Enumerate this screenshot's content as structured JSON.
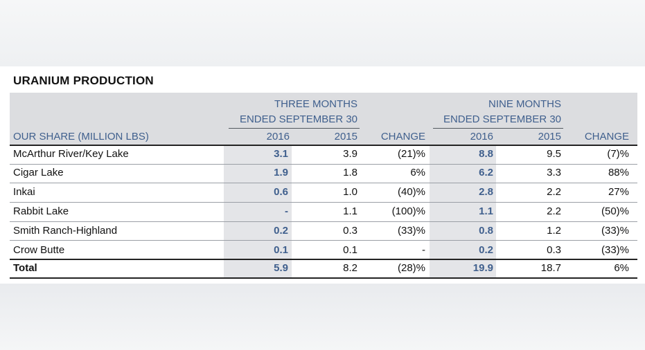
{
  "title": "URANIUM PRODUCTION",
  "header": {
    "group_three_line1": "THREE MONTHS",
    "group_three_line2": "ENDED SEPTEMBER 30",
    "group_nine_line1": "NINE MONTHS",
    "group_nine_line2": "ENDED SEPTEMBER 30",
    "row_label": "OUR SHARE (MILLION LBS)",
    "col_2016_a": "2016",
    "col_2015_a": "2015",
    "col_change_a": "CHANGE",
    "col_2016_b": "2016",
    "col_2015_b": "2015",
    "col_change_b": "CHANGE"
  },
  "rows": [
    {
      "name": "McArthur River/Key Lake",
      "q16": "3.1",
      "q15": "3.9",
      "qchg": "(21)%",
      "n16": "8.8",
      "n15": "9.5",
      "nchg": "(7)%"
    },
    {
      "name": "Cigar Lake",
      "q16": "1.9",
      "q15": "1.8",
      "qchg": "6%",
      "n16": "6.2",
      "n15": "3.3",
      "nchg": "88%"
    },
    {
      "name": "Inkai",
      "q16": "0.6",
      "q15": "1.0",
      "qchg": "(40)%",
      "n16": "2.8",
      "n15": "2.2",
      "nchg": "27%"
    },
    {
      "name": "Rabbit Lake",
      "q16": "-",
      "q15": "1.1",
      "qchg": "(100)%",
      "n16": "1.1",
      "n15": "2.2",
      "nchg": "(50)%"
    },
    {
      "name": "Smith Ranch-Highland",
      "q16": "0.2",
      "q15": "0.3",
      "qchg": "(33)%",
      "n16": "0.8",
      "n15": "1.2",
      "nchg": "(33)%"
    },
    {
      "name": "Crow Butte",
      "q16": "0.1",
      "q15": "0.1",
      "qchg": "-",
      "n16": "0.2",
      "n15": "0.3",
      "nchg": "(33)%"
    }
  ],
  "total": {
    "name": "Total",
    "q16": "5.9",
    "q15": "8.2",
    "qchg": "(28)%",
    "n16": "19.9",
    "n15": "18.7",
    "nchg": "6%"
  }
}
